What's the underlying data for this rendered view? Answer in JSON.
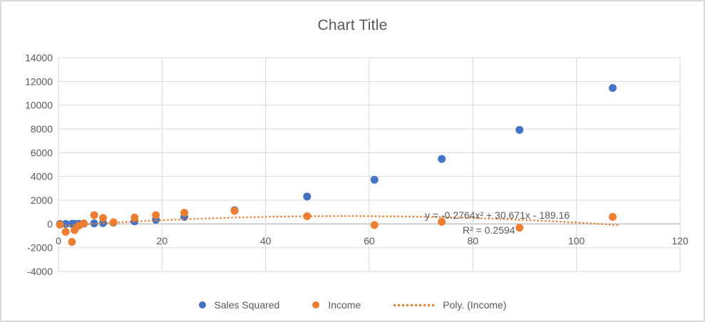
{
  "title": "Chart Title",
  "colors": {
    "series_blue": "#4472C4",
    "series_orange": "#ED7D31",
    "text_gray": "#595959",
    "gridline": "#D9D9D9",
    "axis_line": "#BFBFBF",
    "chart_border": "#D9D9D9"
  },
  "annotation": {
    "equation": "y = -0.2764x² + 30.671x - 189.16",
    "r_squared": "R² = 0.2594"
  },
  "legend": {
    "position": "bottom",
    "items": [
      {
        "label": "Sales Squared",
        "marker": "circle",
        "color": "#4472C4"
      },
      {
        "label": "Income",
        "marker": "circle",
        "color": "#ED7D31"
      },
      {
        "label": "Poly. (Income)",
        "marker": "dotted-line",
        "color": "#ED7D31"
      }
    ]
  },
  "chart_data": {
    "type": "scatter",
    "title": "Chart Title",
    "xlabel": "",
    "ylabel": "",
    "grid": true,
    "legend_position": "bottom",
    "x_axis": {
      "min": 0,
      "max": 120,
      "tick_step": 20,
      "ticks": [
        0,
        20,
        40,
        60,
        80,
        100,
        120
      ]
    },
    "y_axis": {
      "min": -4000,
      "max": 14000,
      "tick_step": 2000,
      "ticks": [
        14000,
        12000,
        10000,
        8000,
        6000,
        4000,
        2000,
        0,
        -2000,
        -4000
      ]
    },
    "series": [
      {
        "name": "Sales Squared",
        "color": "#4472C4",
        "marker_radius": 5.5,
        "points": [
          [
            0.3,
            0
          ],
          [
            1.4,
            2
          ],
          [
            2.6,
            7
          ],
          [
            3.1,
            10
          ],
          [
            3.9,
            15
          ],
          [
            4.9,
            24
          ],
          [
            6.9,
            48
          ],
          [
            8.6,
            74
          ],
          [
            10.6,
            112
          ],
          [
            14.7,
            216
          ],
          [
            18.8,
            353
          ],
          [
            24.3,
            590
          ],
          [
            34,
            1156
          ],
          [
            48,
            2304
          ],
          [
            61,
            3721
          ],
          [
            74,
            5476
          ],
          [
            89,
            7921
          ],
          [
            107,
            11449
          ]
        ]
      },
      {
        "name": "Income",
        "color": "#ED7D31",
        "marker_radius": 5.5,
        "points": [
          [
            0.3,
            -60
          ],
          [
            1.4,
            -660
          ],
          [
            2.6,
            -1520
          ],
          [
            3.1,
            -520
          ],
          [
            3.9,
            -160
          ],
          [
            4.9,
            40
          ],
          [
            6.9,
            740
          ],
          [
            8.6,
            500
          ],
          [
            10.6,
            140
          ],
          [
            14.7,
            540
          ],
          [
            18.8,
            740
          ],
          [
            24.3,
            940
          ],
          [
            34,
            1100
          ],
          [
            48,
            650
          ],
          [
            61,
            -90
          ],
          [
            74,
            180
          ],
          [
            89,
            -320
          ],
          [
            107,
            590
          ]
        ]
      }
    ],
    "trendline": {
      "name": "Poly. (Income)",
      "applies_to": "Income",
      "type": "polynomial",
      "order": 2,
      "coefficients": {
        "a": -0.2764,
        "b": 30.671,
        "c": -189.16
      },
      "equation_text": "y = -0.2764x² + 30.671x - 189.16",
      "r_squared_text": "R² = 0.2594",
      "r_squared": 0.2594,
      "x_range": [
        0,
        108
      ],
      "style": "dotted",
      "color": "#ED7D31"
    }
  }
}
